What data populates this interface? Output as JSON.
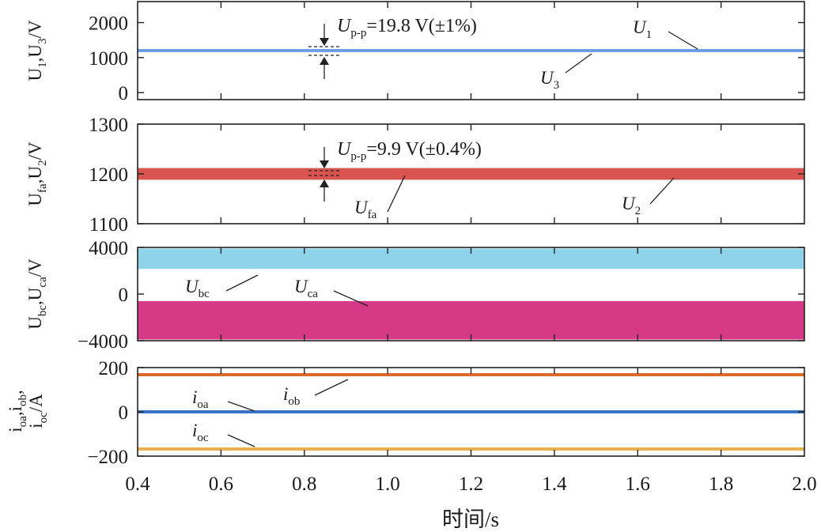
{
  "chart_data": [
    {
      "type": "line",
      "ylabel_parts": [
        "U",
        "1",
        ",U",
        "3",
        "/V"
      ],
      "ylim": [
        -200,
        2600
      ],
      "yticks": [
        "2000",
        "1000",
        "0"
      ],
      "ytick_values": [
        2000,
        1000,
        0
      ],
      "series": [
        {
          "name": "U1",
          "mean": 1200,
          "ripple": 20,
          "color": "#6d9ee3",
          "label_parts": [
            "U",
            "1"
          ]
        },
        {
          "name": "U3",
          "mean": 1200,
          "ripple": 20,
          "color": "#6d9ee3",
          "label_parts": [
            "U",
            "3"
          ]
        }
      ],
      "annotation_parts": [
        "U",
        "p-p",
        "=19.8 V(±1%)"
      ]
    },
    {
      "type": "line",
      "ylabel_parts": [
        "U",
        "fa",
        ",U",
        "2",
        "/V"
      ],
      "ylim": [
        1100,
        1300
      ],
      "yticks": [
        "1300",
        "1200",
        "1100"
      ],
      "ytick_values": [
        1300,
        1200,
        1100
      ],
      "series": [
        {
          "name": "Ufa",
          "mean": 1200,
          "ripple": 10,
          "color": "#3a3a99",
          "label_parts": [
            "U",
            "fa"
          ]
        },
        {
          "name": "U2",
          "mean": 1200,
          "ripple": 10,
          "color": "#d9534f",
          "label_parts": [
            "U",
            "2"
          ]
        }
      ],
      "annotation_parts": [
        "U",
        "p-p",
        "=9.9 V(±0.4%)"
      ]
    },
    {
      "type": "area",
      "ylabel_parts": [
        "U",
        "bc",
        ",U",
        "ca",
        "/V"
      ],
      "ylim": [
        -4000,
        4000
      ],
      "yticks": [
        "4000",
        "0",
        "−4000"
      ],
      "ytick_values": [
        4000,
        0,
        -4000
      ],
      "series": [
        {
          "name": "Ubc",
          "min": 2150,
          "max": 3900,
          "color": "#8fd3ea",
          "label_parts": [
            "U",
            "bc"
          ]
        },
        {
          "name": "Uca",
          "min": -3900,
          "max": -600,
          "color": "#d63a86",
          "label_parts": [
            "U",
            "ca"
          ]
        }
      ]
    },
    {
      "type": "line",
      "ylabel_line1_parts": [
        "i",
        "oa",
        ",i",
        "ob",
        ","
      ],
      "ylabel_line2_parts": [
        "i",
        "oc",
        "/A"
      ],
      "ylim": [
        -200,
        200
      ],
      "yticks": [
        "200",
        "0",
        "−200"
      ],
      "ytick_values": [
        200,
        0,
        -200
      ],
      "series": [
        {
          "name": "ioa",
          "mean": 0,
          "color": "#3b73c4",
          "label_parts": [
            "i",
            "oa"
          ]
        },
        {
          "name": "iob",
          "mean": 168,
          "color": "#dd6a2a",
          "label_parts": [
            "i",
            "ob"
          ]
        },
        {
          "name": "ioc",
          "mean": -168,
          "color": "#e8b14b",
          "label_parts": [
            "i",
            "oc"
          ]
        }
      ]
    }
  ],
  "x_axis": {
    "xlim": [
      0.4,
      2.0
    ],
    "ticks": [
      0.4,
      0.6,
      0.8,
      1.0,
      1.2,
      1.4,
      1.6,
      1.8,
      2.0
    ],
    "tick_labels": [
      "0.4",
      "0.6",
      "0.8",
      "1.0",
      "1.2",
      "1.4",
      "1.6",
      "1.8",
      "2.0"
    ],
    "xlabel": "时间/s"
  }
}
